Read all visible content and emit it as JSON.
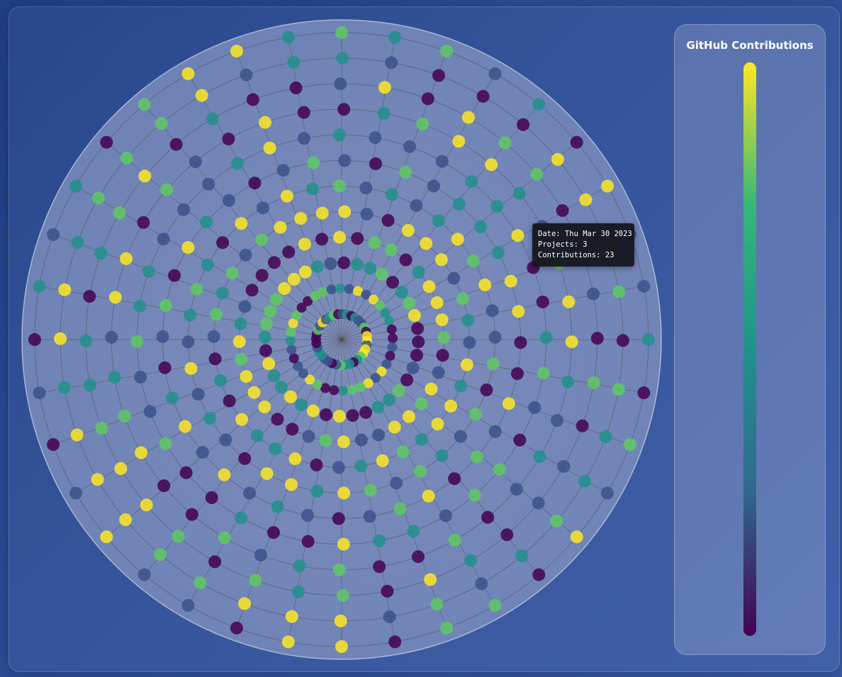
{
  "legend": {
    "title": "GitHub Contributions",
    "stops": [
      "#440154",
      "#31688e",
      "#21918c",
      "#35b779",
      "#fde725"
    ]
  },
  "tooltip": {
    "date": "Date: Thu Mar 30 2023",
    "projects": "Projects: 3",
    "contributions": "Contributions: 23"
  },
  "chart_data": {
    "type": "scatter",
    "title": "GitHub Contributions",
    "coordinate_system": "polar",
    "spokes": 36,
    "rings": 12,
    "color_scale": "viridis",
    "point_colors": [
      "#440154",
      "#3b528b",
      "#21918c",
      "#5ec962",
      "#fde725"
    ],
    "highlighted_point": {
      "date": "Thu Mar 30 2023",
      "projects": 3,
      "contributions": 23
    }
  }
}
